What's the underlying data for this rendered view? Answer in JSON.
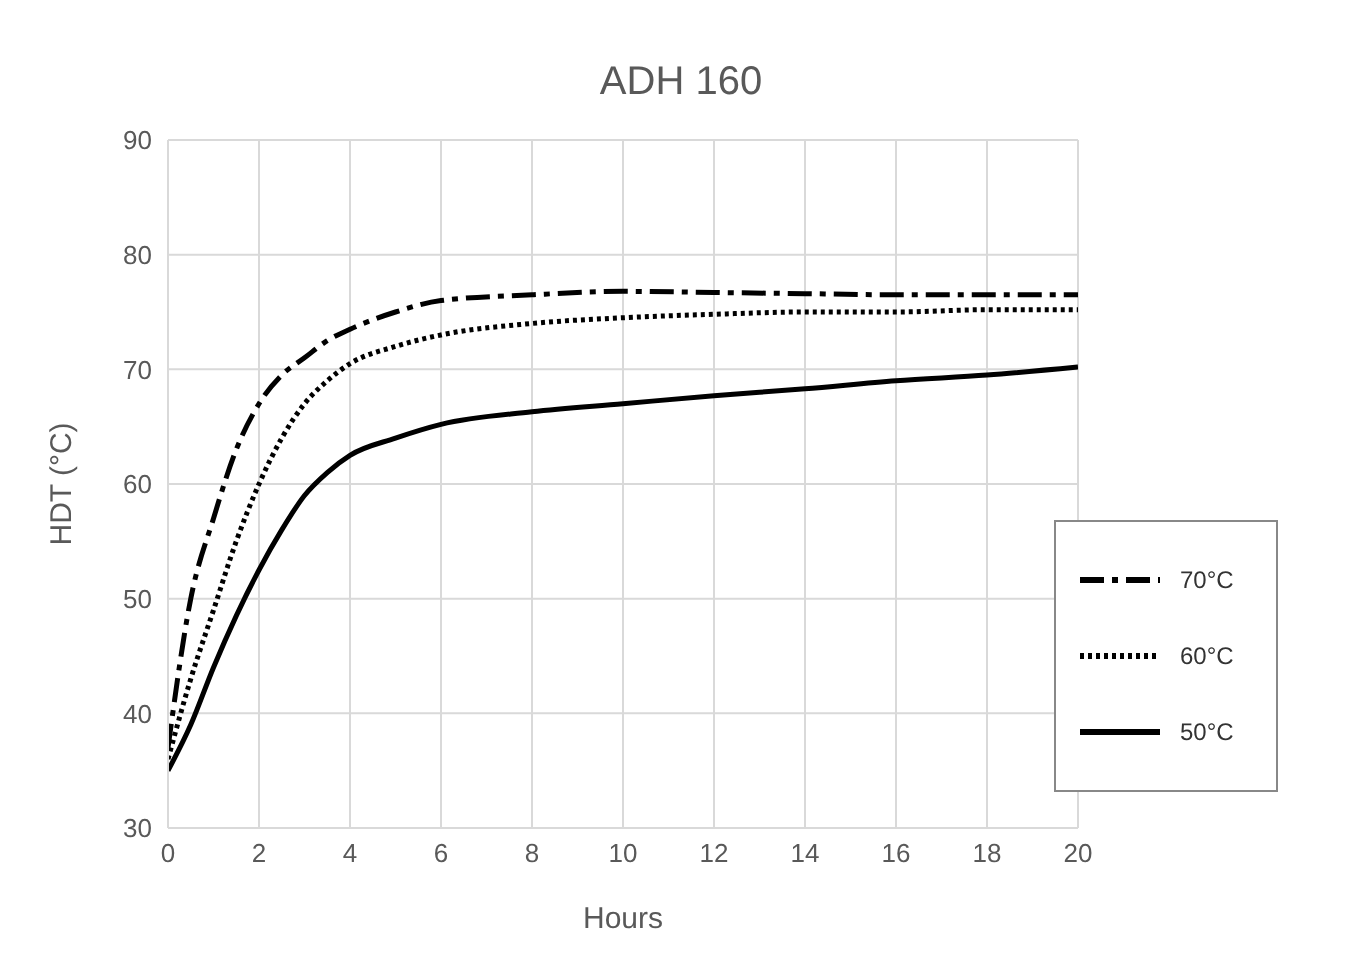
{
  "chart_data": {
    "type": "line",
    "title": "ADH 160",
    "xlabel": "Hours",
    "ylabel": "HDT (°C)",
    "x": [
      0,
      0.5,
      1,
      1.5,
      2,
      2.5,
      3,
      3.5,
      4,
      5,
      6,
      8,
      10,
      12,
      14,
      16,
      18,
      20
    ],
    "series": [
      {
        "name": "70°C",
        "color": "#000000",
        "line_style": "dashed",
        "values": [
          37,
          50,
          57,
          63,
          67,
          69.5,
          71,
          72.5,
          73.5,
          75,
          76,
          76.5,
          76.8,
          76.7,
          76.6,
          76.5,
          76.5,
          76.5
        ]
      },
      {
        "name": "60°C",
        "color": "#000000",
        "line_style": "dotted",
        "values": [
          36,
          43,
          49,
          55,
          60,
          64,
          67,
          69,
          70.5,
          72,
          73,
          74,
          74.5,
          74.8,
          75,
          75,
          75.2,
          75.2
        ]
      },
      {
        "name": "50°C",
        "color": "#000000",
        "line_style": "solid",
        "values": [
          35,
          39,
          44,
          48.5,
          52.5,
          56,
          59,
          61,
          62.5,
          64,
          65.2,
          66.3,
          67,
          67.7,
          68.3,
          69,
          69.5,
          70.2
        ]
      }
    ],
    "xlim": [
      0,
      20
    ],
    "xticks": [
      0,
      2,
      4,
      6,
      8,
      10,
      12,
      14,
      16,
      18,
      20
    ],
    "ylim": [
      30,
      90
    ],
    "yticks": [
      30,
      40,
      50,
      60,
      70,
      80,
      90
    ],
    "grid": true,
    "legend": "right",
    "marker": "none"
  }
}
